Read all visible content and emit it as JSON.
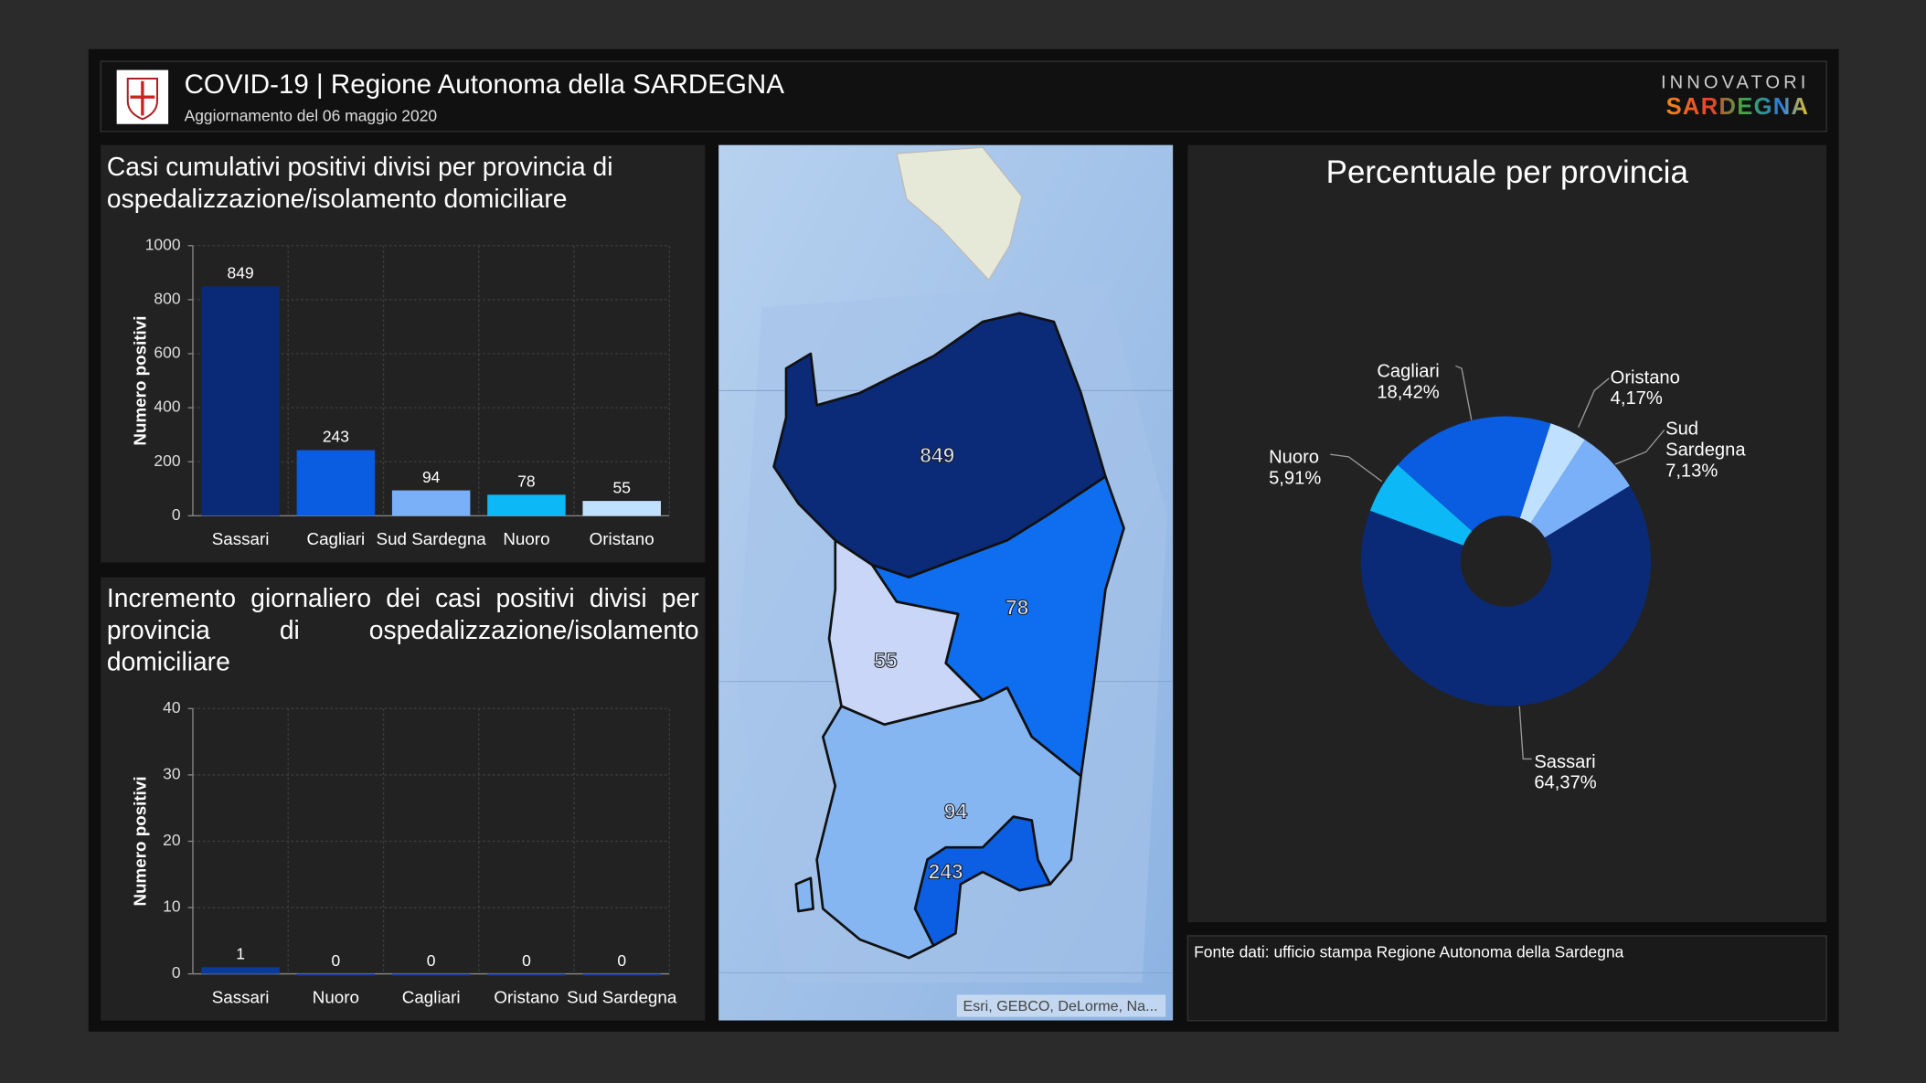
{
  "header": {
    "title": "COVID-19 | Regione Autonoma della SARDEGNA",
    "subtitle": "Aggiornamento del 06 maggio 2020",
    "brand_top": "INNOVATORI",
    "brand_bottom": "SARDEGNA"
  },
  "chart_data": [
    {
      "type": "bar",
      "title": "Casi cumulativi positivi divisi per provincia di ospedalizzazione/isolamento domiciliare",
      "y_label": "Numero positivi",
      "categories": [
        "Sassari",
        "Cagliari",
        "Sud Sardegna",
        "Nuoro",
        "Oristano"
      ],
      "values": [
        849,
        243,
        94,
        78,
        55
      ],
      "colors": [
        "#0a2a78",
        "#0a5ce0",
        "#7ab0f7",
        "#0cb8f5",
        "#bfe0ff"
      ],
      "ylim": [
        0,
        1000
      ],
      "yticks": [
        0,
        200,
        400,
        600,
        800,
        1000
      ],
      "grid": true
    },
    {
      "type": "bar",
      "title": "Incremento giornaliero dei casi positivi divisi per provincia di ospedalizzazione/isolamento domiciliare",
      "y_label": "Numero positivi",
      "categories": [
        "Sassari",
        "Nuoro",
        "Cagliari",
        "Oristano",
        "Sud Sardegna"
      ],
      "values": [
        1,
        0,
        0,
        0,
        0
      ],
      "color": "#0a3a9a",
      "ylim": [
        0,
        40
      ],
      "yticks": [
        0,
        10,
        20,
        30,
        40
      ],
      "grid": true
    },
    {
      "type": "pie",
      "title": "Percentuale per provincia",
      "categories": [
        "Oristano",
        "Sud Sardegna",
        "Sassari",
        "Nuoro",
        "Cagliari"
      ],
      "values": [
        4.17,
        7.13,
        64.37,
        5.91,
        18.42
      ],
      "value_labels": [
        "4,17%",
        "7,13%",
        "64,37%",
        "5,91%",
        "18,42%"
      ],
      "colors": [
        "#bfe0ff",
        "#7ab0f7",
        "#0a2a78",
        "#0cb8f5",
        "#0a5ce0"
      ]
    }
  ],
  "map": {
    "labels": [
      "849",
      "78",
      "55",
      "94",
      "243"
    ],
    "attribution": "Esri, GEBCO, DeLorme, Na..."
  },
  "footer": {
    "source": "Fonte dati: ufficio stampa Regione Autonoma della Sardegna"
  }
}
